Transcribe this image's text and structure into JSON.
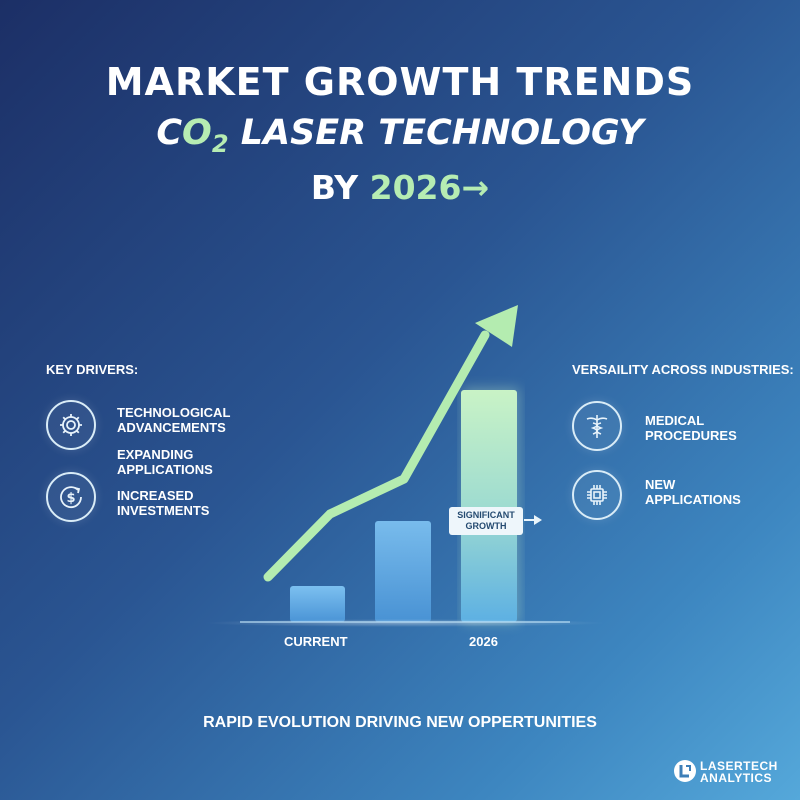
{
  "header": {
    "line1": "MARKET GROWTH TRENDS",
    "line2_prefix": "C",
    "line2_o": "O",
    "line2_sub": "2",
    "line2_rest": " LASER TECHNOLOGY",
    "line3_prefix": "BY ",
    "line3_year": "2026",
    "line3_arrow": "→"
  },
  "left_panel": {
    "heading": "KEY DRIVERS:",
    "items": [
      {
        "label": "TECHNOLOGICAL ADVANCEMENTS",
        "icon": "gear-icon"
      },
      {
        "label": "EXPANDING APPLICATIONS",
        "icon": null
      },
      {
        "label": "INCREASED INVESTMENTS",
        "icon": "dollar-growth-icon"
      }
    ]
  },
  "right_panel": {
    "heading": "VERSAILITY ACROSS INDUSTRIES:",
    "items": [
      {
        "label": "MEDICAL PROCEDURES",
        "icon": "caduceus-icon"
      },
      {
        "label": "NEW APPLICATIONS",
        "icon": "chip-icon"
      }
    ]
  },
  "chart": {
    "x_labels": [
      "CURRENT",
      "2026"
    ],
    "callout": "SIGNIFICANT GROWTH"
  },
  "colors": {
    "accent_green": "#b6ecb2",
    "bar_blue": "#5aa8e6"
  },
  "tagline": "RAPID EVOLUTION DRIVING NEW OPPERTUNITIES",
  "logo": {
    "line1": "LASERTECH",
    "line2": "ANALYTICS",
    "icon": "lasertech-logo-icon"
  }
}
